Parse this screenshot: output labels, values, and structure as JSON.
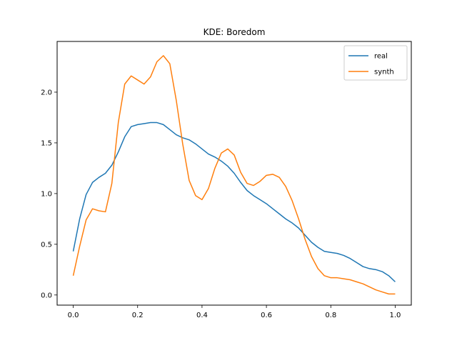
{
  "chart_data": {
    "type": "line",
    "title": "KDE: Boredom",
    "xlabel": "",
    "ylabel": "",
    "xlim": [
      -0.05,
      1.05
    ],
    "ylim": [
      -0.1,
      2.5
    ],
    "xticks": [
      0.0,
      0.2,
      0.4,
      0.6,
      0.8,
      1.0
    ],
    "xtick_labels": [
      "0.0",
      "0.2",
      "0.4",
      "0.6",
      "0.8",
      "1.0"
    ],
    "yticks": [
      0.0,
      0.5,
      1.0,
      1.5,
      2.0
    ],
    "ytick_labels": [
      "0.0",
      "0.5",
      "1.0",
      "1.5",
      "2.0"
    ],
    "grid": false,
    "legend": "top-right",
    "series": [
      {
        "name": "real",
        "color": "#1f77b4",
        "x": [
          0.0,
          0.02,
          0.04,
          0.06,
          0.08,
          0.1,
          0.12,
          0.14,
          0.16,
          0.18,
          0.2,
          0.22,
          0.24,
          0.26,
          0.28,
          0.3,
          0.32,
          0.34,
          0.36,
          0.38,
          0.4,
          0.42,
          0.44,
          0.46,
          0.48,
          0.5,
          0.52,
          0.54,
          0.56,
          0.58,
          0.6,
          0.62,
          0.64,
          0.66,
          0.68,
          0.7,
          0.72,
          0.74,
          0.76,
          0.78,
          0.8,
          0.82,
          0.84,
          0.86,
          0.88,
          0.9,
          0.92,
          0.94,
          0.96,
          0.98,
          1.0
        ],
        "y": [
          0.43,
          0.75,
          0.99,
          1.11,
          1.16,
          1.2,
          1.28,
          1.41,
          1.56,
          1.66,
          1.68,
          1.69,
          1.7,
          1.7,
          1.68,
          1.63,
          1.58,
          1.55,
          1.53,
          1.49,
          1.44,
          1.39,
          1.36,
          1.32,
          1.27,
          1.2,
          1.11,
          1.03,
          0.98,
          0.94,
          0.9,
          0.85,
          0.8,
          0.75,
          0.71,
          0.66,
          0.59,
          0.52,
          0.47,
          0.43,
          0.42,
          0.41,
          0.39,
          0.36,
          0.32,
          0.28,
          0.26,
          0.25,
          0.23,
          0.19,
          0.13
        ]
      },
      {
        "name": "synth",
        "color": "#ff7f0e",
        "x": [
          0.0,
          0.02,
          0.04,
          0.06,
          0.08,
          0.1,
          0.12,
          0.14,
          0.16,
          0.18,
          0.2,
          0.22,
          0.24,
          0.26,
          0.28,
          0.3,
          0.32,
          0.34,
          0.36,
          0.38,
          0.4,
          0.42,
          0.44,
          0.46,
          0.48,
          0.5,
          0.52,
          0.54,
          0.56,
          0.58,
          0.6,
          0.62,
          0.64,
          0.66,
          0.68,
          0.7,
          0.72,
          0.74,
          0.76,
          0.78,
          0.8,
          0.82,
          0.84,
          0.86,
          0.88,
          0.9,
          0.92,
          0.94,
          0.96,
          0.98,
          1.0
        ],
        "y": [
          0.19,
          0.48,
          0.74,
          0.85,
          0.83,
          0.82,
          1.1,
          1.7,
          2.08,
          2.16,
          2.12,
          2.08,
          2.15,
          2.3,
          2.36,
          2.28,
          1.92,
          1.49,
          1.13,
          0.98,
          0.94,
          1.05,
          1.25,
          1.4,
          1.44,
          1.38,
          1.21,
          1.1,
          1.08,
          1.12,
          1.18,
          1.19,
          1.16,
          1.07,
          0.93,
          0.75,
          0.55,
          0.38,
          0.26,
          0.19,
          0.17,
          0.17,
          0.16,
          0.15,
          0.13,
          0.11,
          0.08,
          0.05,
          0.03,
          0.01,
          0.01
        ]
      }
    ]
  }
}
